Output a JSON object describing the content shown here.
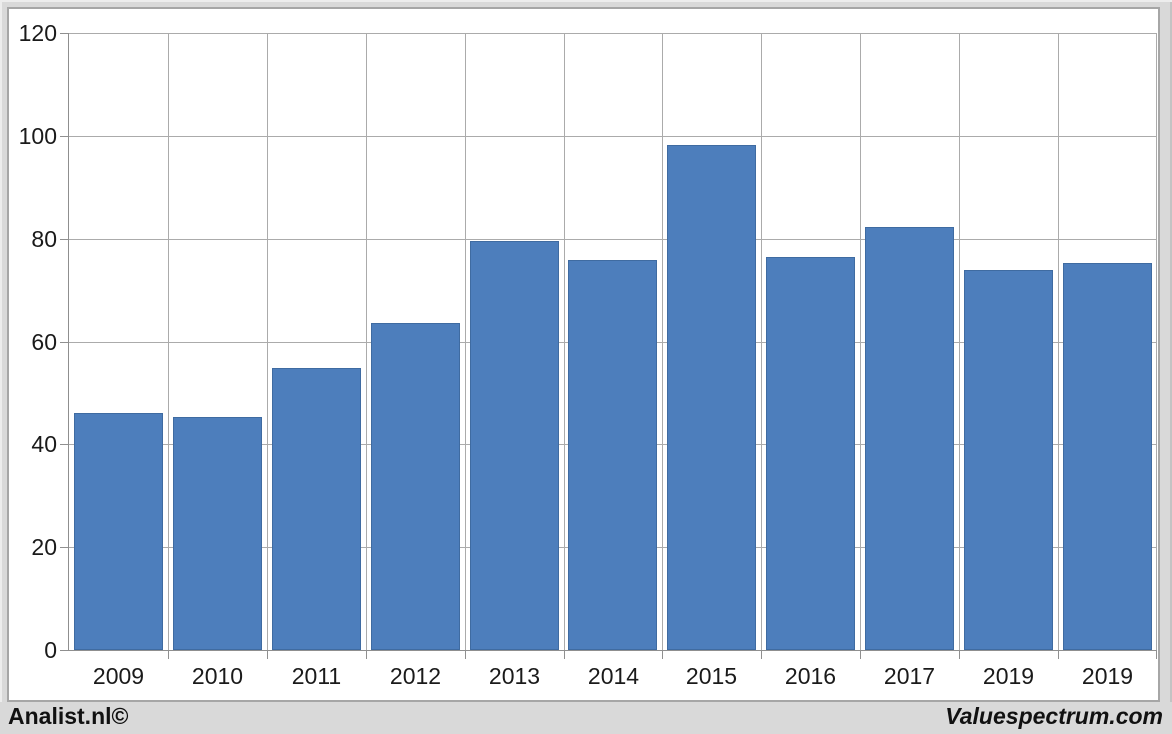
{
  "footer": {
    "left_brand": "Analist.nl©",
    "right_brand": "Valuespectrum.com"
  },
  "chart_data": {
    "type": "bar",
    "title": "",
    "xlabel": "",
    "ylabel": "",
    "categories": [
      "2009",
      "2010",
      "2011",
      "2012",
      "2013",
      "2014",
      "2015",
      "2016",
      "2017",
      "2019",
      "2019"
    ],
    "values": [
      46,
      45.4,
      54.8,
      63.6,
      79.6,
      75.8,
      98.2,
      76.5,
      82.3,
      74,
      75.3
    ],
    "ylim": [
      0,
      120
    ],
    "yticks": [
      0,
      20,
      40,
      60,
      80,
      100,
      120
    ],
    "grid": true,
    "legend_position": "none",
    "colors": {
      "bar_fill": "#4d7ebc",
      "bar_border": "#3f6ba1",
      "gridline": "#ababab",
      "axis": "#8f8f8f",
      "label": "#1a1a1a",
      "panel_background": "#ffffff",
      "page_background": "#d9d9d9"
    }
  }
}
